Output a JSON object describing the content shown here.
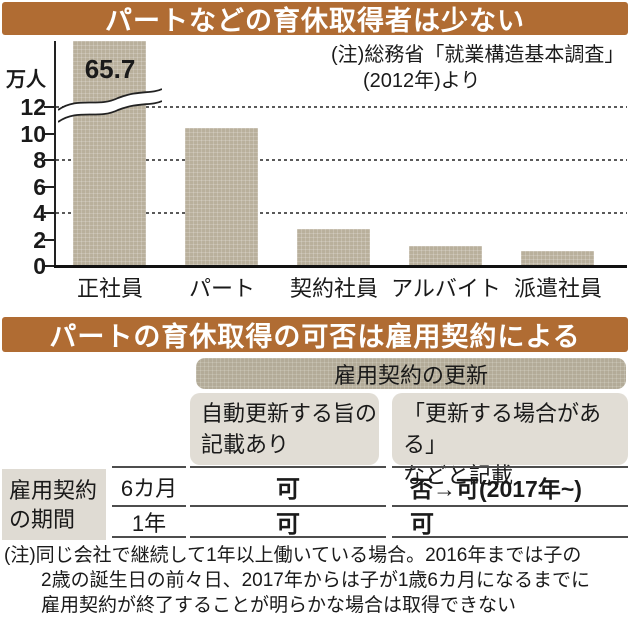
{
  "section1": {
    "title": "パートなどの育休取得者は少ない",
    "unit_label": "万人",
    "note_line1": "(注)総務省「就業構造基本調査」",
    "note_line2": "(2012年)より"
  },
  "chart_data": {
    "type": "bar",
    "title": "パートなどの育休取得者は少ない",
    "categories": [
      "正社員",
      "パート",
      "契約社員",
      "アルバイト",
      "派遣社員"
    ],
    "values": [
      65.7,
      10.4,
      2.8,
      1.5,
      1.1
    ],
    "ylabel": "万人",
    "ylim": [
      0,
      13
    ],
    "yticks": [
      0,
      2,
      4,
      6,
      8,
      10,
      12
    ],
    "gridlines_at": [
      4,
      8,
      12
    ],
    "grid_style": "dashed",
    "axis_break": {
      "on_category": "正社員",
      "value_label": "65.7"
    },
    "source_note": "(注)総務省「就業構造基本調査」(2012年)より"
  },
  "section2": {
    "title": "パートの育休取得の可否は雇用契約による",
    "table": {
      "span_header": "雇用契約の更新",
      "col_headers": [
        {
          "line1": "自動更新する旨の",
          "line2": "記載あり"
        },
        {
          "line1": "「更新する場合がある」",
          "line2": "などと記載"
        }
      ],
      "row_group_header": {
        "line1": "雇用契約",
        "line2": "の期間"
      },
      "rows": [
        {
          "period": "6カ月",
          "col1": "可",
          "col2": "否→可(2017年~)"
        },
        {
          "period": "1年",
          "col1": "可",
          "col2": "可"
        }
      ]
    },
    "note_lines": [
      "(注)同じ会社で継続して1年以上働いている場合。2016年までは子の",
      "2歳の誕生日の前々日、2017年からは子が1歳6カ月になるまでに",
      "雇用契約が終了することが明らかな場合は取得できない"
    ]
  },
  "colors": {
    "title_bar_bg": "#b06c33",
    "bar_fill": "#b9b09c",
    "table_dark_header_bg": "#b3ab98",
    "table_light_header_bg": "#e1ddd5",
    "rule_line": "#4d4d4d",
    "text": "#1a1a1a"
  }
}
